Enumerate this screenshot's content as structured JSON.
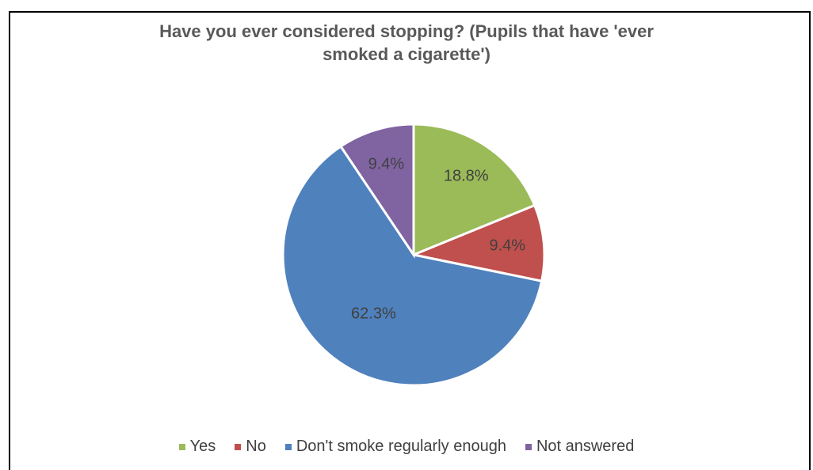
{
  "chart_data": {
    "type": "pie",
    "title": "Have you ever considered stopping? (Pupils that have 'ever smoked a cigarette')",
    "title_lines": [
      "Have you ever considered stopping? (Pupils that have 'ever",
      "smoked a cigarette')"
    ],
    "categories": [
      "Yes",
      "No",
      "Don't smoke regularly enough",
      "Not answered"
    ],
    "values": [
      18.8,
      9.4,
      62.3,
      9.4
    ],
    "labels": [
      "18.8%",
      "9.4%",
      "62.3%",
      "9.4%"
    ],
    "colors": [
      "#9BBB59",
      "#C0504D",
      "#4F81BD",
      "#8064A2"
    ],
    "legend_position": "bottom"
  }
}
